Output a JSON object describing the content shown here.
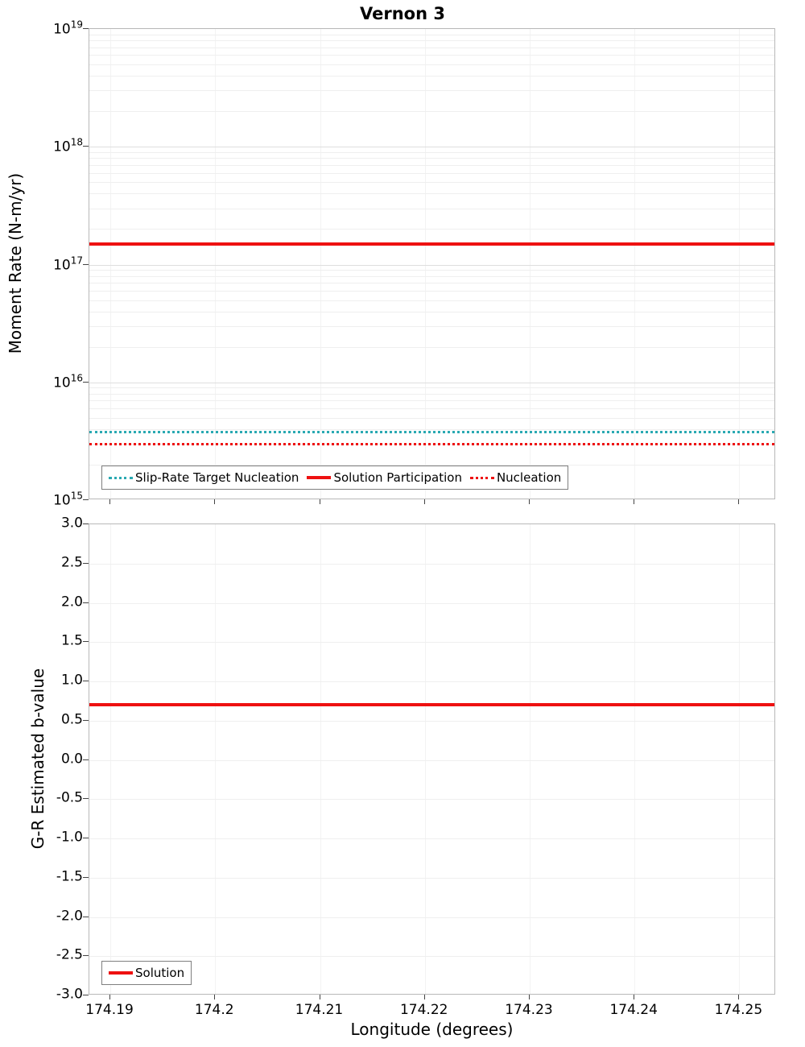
{
  "title": "Vernon 3",
  "colors": {
    "red": "#ee1111",
    "teal": "#2aa9b2"
  },
  "chart_data": [
    {
      "type": "line",
      "panel": "moment-rate",
      "title": "Vernon 3",
      "ylabel": "Moment Rate (N-m/yr)",
      "yscale": "log",
      "ylim_exponents": [
        15,
        19
      ],
      "ytick_exponents": [
        19,
        18,
        17,
        16,
        15
      ],
      "grid": "on",
      "legend_position": "bottom-left-inside",
      "series": [
        {
          "name": "Slip-Rate Target Nucleation",
          "style": "dotted",
          "color": "#2aa9b2",
          "value": 3800000000000000.0
        },
        {
          "name": "Solution Participation",
          "style": "solid",
          "color": "#ee1111",
          "value": 1.5e+17
        },
        {
          "name": "Nucleation",
          "style": "dotted",
          "color": "#ee1111",
          "value": 3000000000000000.0
        }
      ]
    },
    {
      "type": "line",
      "panel": "b-value",
      "ylabel": "G-R Estimated b-value",
      "xlabel": "Longitude (degrees)",
      "ylim": [
        -3.0,
        3.0
      ],
      "yticks": [
        "3.0",
        "2.5",
        "2.0",
        "1.5",
        "1.0",
        "0.5",
        "0.0",
        "-0.5",
        "-1.0",
        "-1.5",
        "-2.0",
        "-2.5",
        "-3.0"
      ],
      "xlim": [
        174.188,
        174.2535
      ],
      "xticks": [
        "174.19",
        "174.2",
        "174.21",
        "174.22",
        "174.23",
        "174.24",
        "174.25"
      ],
      "grid": "on",
      "legend_position": "bottom-left-inside",
      "series": [
        {
          "name": "Solution",
          "style": "solid",
          "color": "#ee1111",
          "value": 0.7
        }
      ]
    }
  ]
}
